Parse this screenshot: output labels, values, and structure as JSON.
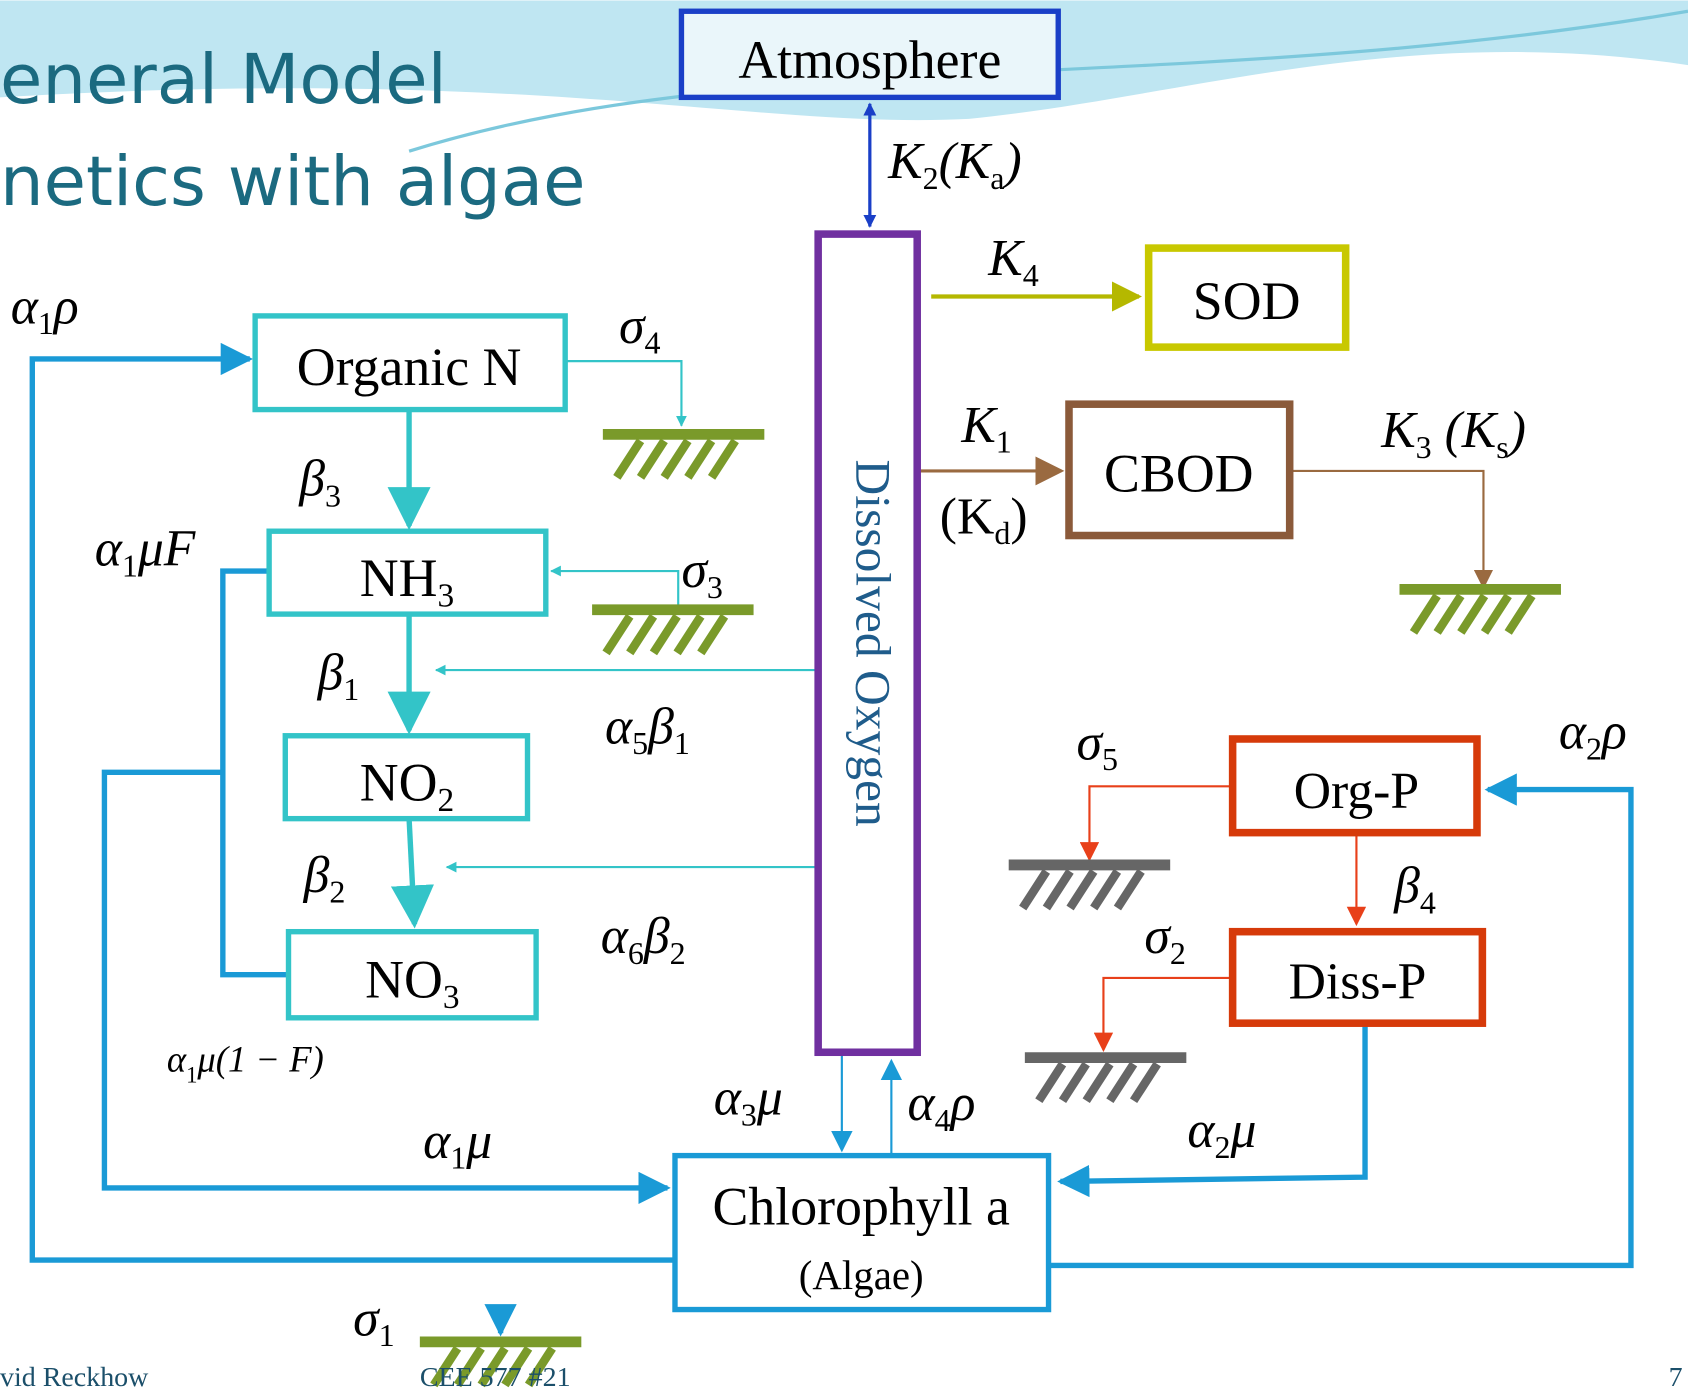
{
  "header": {
    "title_lines": [
      "eneral Model",
      "netics with algae"
    ]
  },
  "nodes": {
    "atmosphere": "Atmosphere",
    "dissolved_oxygen": "Dissolved Oxygen",
    "sod": "SOD",
    "cbod": "CBOD",
    "organic_n": "Organic N",
    "nh3": [
      "NH",
      "3"
    ],
    "no2": [
      "NO",
      "2"
    ],
    "no3": [
      "NO",
      "3"
    ],
    "org_p": "Org-P",
    "diss_p": "Diss-P",
    "chlorophyll": "Chlorophyll a",
    "algae": "(Algae)"
  },
  "labels": {
    "k2": [
      "K",
      "2",
      "(K",
      "a",
      ")"
    ],
    "k4": [
      "K",
      "4"
    ],
    "k1": [
      "K",
      "1"
    ],
    "kd": [
      "(K",
      "d",
      ")"
    ],
    "k3": [
      "K",
      "3",
      " (K",
      "s",
      ")"
    ],
    "a1rho": [
      "α",
      "1",
      "ρ"
    ],
    "sigma4": [
      "σ",
      "4"
    ],
    "beta3": [
      "β",
      "3"
    ],
    "a1muF": [
      "α",
      "1",
      "μF"
    ],
    "sigma3": [
      "σ",
      "3"
    ],
    "beta1": [
      "β",
      "1"
    ],
    "a5beta1": [
      "α",
      "5",
      "β",
      "1"
    ],
    "beta2": [
      "β",
      "2"
    ],
    "a6beta2": [
      "α",
      "6",
      "β",
      "2"
    ],
    "a1mu1F": [
      "α",
      "1",
      "μ(1 − F)"
    ],
    "a1mu": [
      "α",
      "1",
      "μ"
    ],
    "sigma1": [
      "σ",
      "1"
    ],
    "a3mu": [
      "α",
      "3",
      "μ"
    ],
    "a4rho": [
      "α",
      "4",
      "ρ"
    ],
    "a2mu": [
      "α",
      "2",
      "μ"
    ],
    "sigma2": [
      "σ",
      "2"
    ],
    "sigma5": [
      "σ",
      "5"
    ],
    "beta4": [
      "β",
      "4"
    ],
    "a2rho": [
      "α",
      "2",
      "ρ"
    ]
  },
  "footer": {
    "author": "vid Reckhow",
    "course": "CEE 577  #21",
    "page": "7"
  }
}
